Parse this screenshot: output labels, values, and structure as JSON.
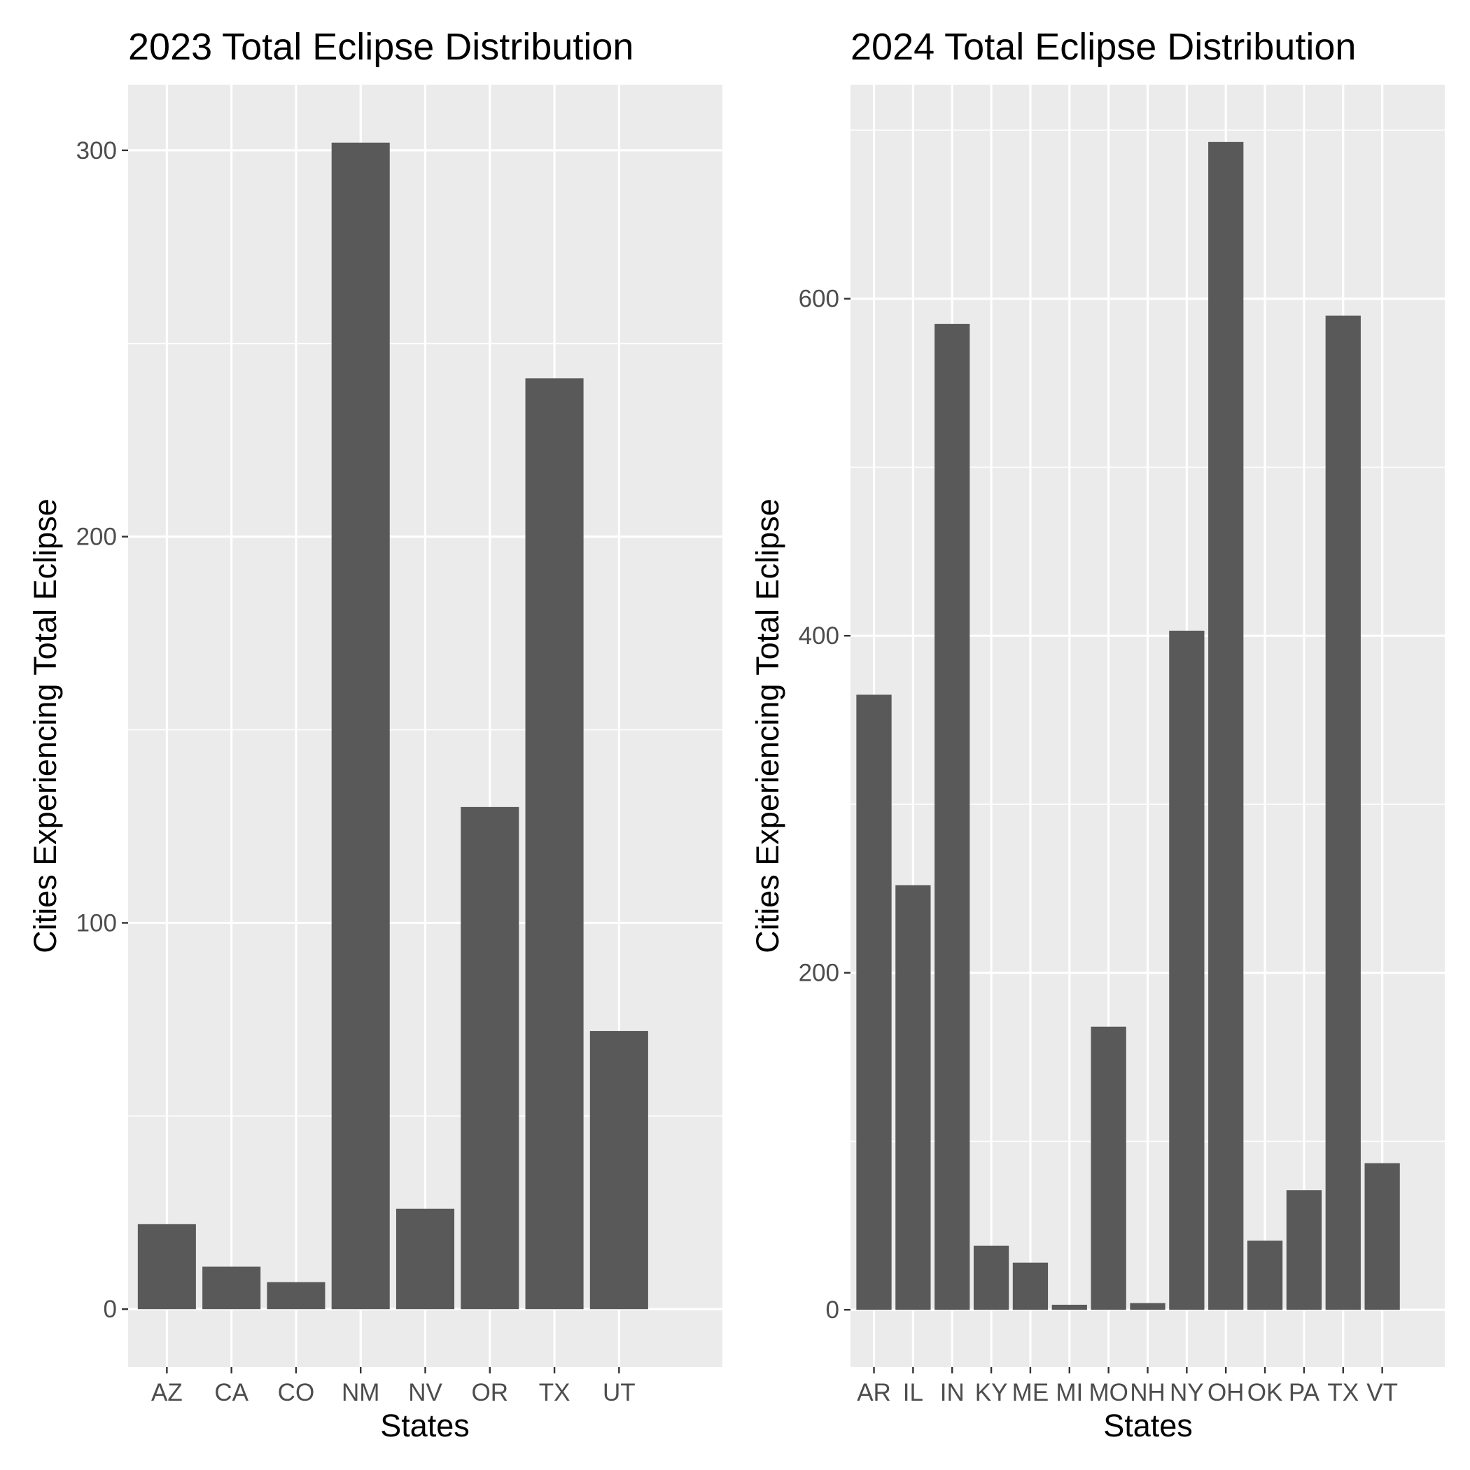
{
  "chart_data": [
    {
      "type": "bar",
      "title": "2023 Total Eclipse Distribution",
      "xlabel": "States",
      "ylabel": "Cities Experiencing Total Eclipse",
      "categories": [
        "AZ",
        "CA",
        "CO",
        "NM",
        "NV",
        "OR",
        "TX",
        "UT"
      ],
      "values": [
        22,
        11,
        7,
        302,
        26,
        130,
        241,
        72
      ],
      "ylim": [
        -15,
        317
      ],
      "yticks": [
        0,
        100,
        200,
        300
      ],
      "grid": true,
      "bar_color": "#595959",
      "panel_background": "#ebebeb"
    },
    {
      "type": "bar",
      "title": "2024 Total Eclipse Distribution",
      "xlabel": "States",
      "ylabel": "Cities Experiencing Total Eclipse",
      "categories": [
        "AR",
        "IL",
        "IN",
        "KY",
        "ME",
        "MI",
        "MO",
        "NH",
        "NY",
        "OH",
        "OK",
        "PA",
        "TX",
        "VT"
      ],
      "values": [
        365,
        252,
        585,
        38,
        28,
        3,
        168,
        4,
        403,
        693,
        41,
        71,
        590,
        87
      ],
      "ylim": [
        -34,
        727
      ],
      "yticks": [
        0,
        200,
        400,
        600
      ],
      "grid": true,
      "bar_color": "#595959",
      "panel_background": "#ebebeb"
    }
  ]
}
